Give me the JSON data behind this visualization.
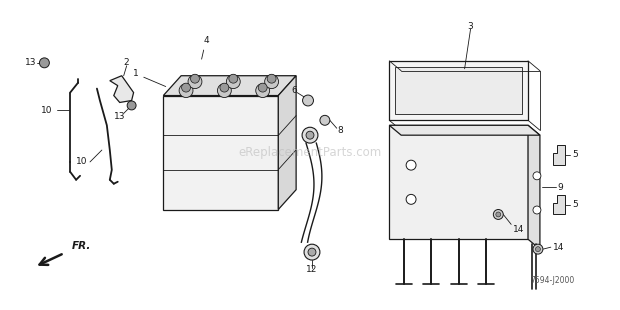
{
  "bg_color": "#ffffff",
  "fig_width": 6.2,
  "fig_height": 3.1,
  "dpi": 100,
  "watermark": "eReplacementParts.com",
  "diagram_code": "7594-J2000",
  "fr_label": "FR.",
  "line_color": "#1a1a1a",
  "text_color": "#1a1a1a",
  "watermark_color": "#bbbbbb",
  "lw_main": 0.9,
  "lw_thin": 0.6
}
